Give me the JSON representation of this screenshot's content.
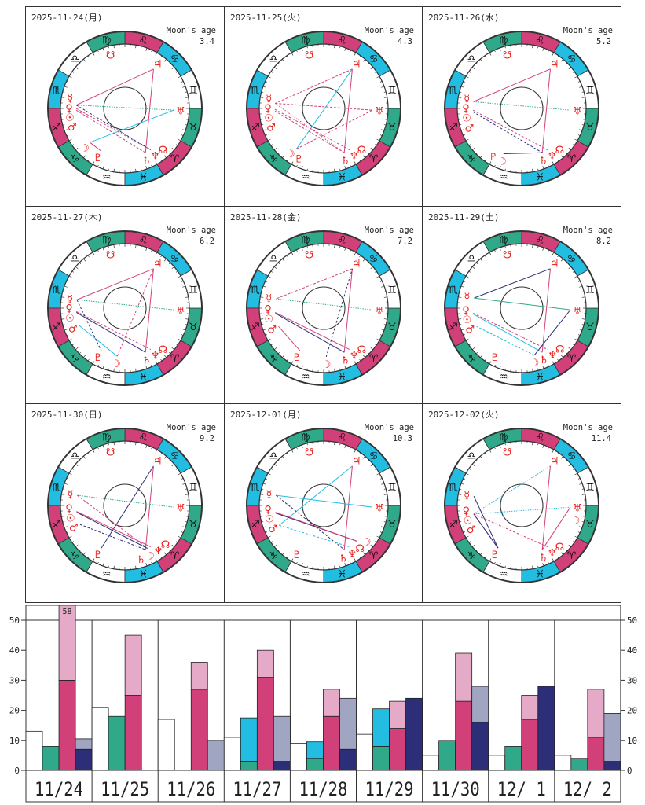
{
  "moon_age_label": "Moon's age",
  "colors": {
    "pink": "#d2407a",
    "lightpink": "#e6aac9",
    "green": "#2fa98a",
    "cyan": "#22bde0",
    "navy": "#2c2f77",
    "gray": "#a0a5c2",
    "white": "#ffffff",
    "glyph": "#e8201c"
  },
  "zodiac": [
    "♈",
    "♉",
    "♊",
    "♋",
    "♌",
    "♍",
    "♎",
    "♏",
    "♐",
    "♑",
    "♒",
    "♓"
  ],
  "planet_glyphs": {
    "Sun": "☉",
    "Moon": "☽",
    "Mercury": "☿",
    "Venus": "♀",
    "Mars": "♂",
    "Jupiter": "♃",
    "Saturn": "♄",
    "Uranus": "♅",
    "Neptune": "♆",
    "Pluto": "♇",
    "Node": "☊",
    "SNode": "☋"
  },
  "panels": [
    {
      "date": "2025-11-24(月)",
      "moon_age": "3.4",
      "planets": {
        "Sun": 242,
        "Moon": 284,
        "Mercury": 236,
        "Venus": 240,
        "Mars": 258,
        "Jupiter": 114,
        "Saturn": 355,
        "Uranus": 58,
        "Neptune": 2,
        "Pluto": 301,
        "Node": 12,
        "SNode": 165
      },
      "aspects": [
        [
          "Jupiter",
          "Mercury",
          "pink",
          "solid"
        ],
        [
          "Jupiter",
          "Saturn",
          "pink",
          "solid"
        ],
        [
          "Moon",
          "Uranus",
          "cyan",
          "solid"
        ],
        [
          "Mercury",
          "Uranus",
          "green",
          "dot"
        ],
        [
          "Sun",
          "Saturn",
          "pink",
          "dash"
        ],
        [
          "Venus",
          "Neptune",
          "pink",
          "dash"
        ],
        [
          "Mercury",
          "Neptune",
          "navy",
          "dash"
        ],
        [
          "Moon",
          "Pluto",
          "pink",
          "solid"
        ]
      ]
    },
    {
      "date": "2025-11-25(火)",
      "moon_age": "4.3",
      "planets": {
        "Sun": 243,
        "Moon": 296,
        "Mercury": 234,
        "Venus": 241,
        "Mars": 259,
        "Jupiter": 114,
        "Saturn": 355,
        "Uranus": 58,
        "Neptune": 2,
        "Pluto": 301,
        "Node": 12,
        "SNode": 165
      },
      "aspects": [
        [
          "Jupiter",
          "Mercury",
          "pink",
          "dash"
        ],
        [
          "Jupiter",
          "Saturn",
          "pink",
          "solid"
        ],
        [
          "Moon",
          "Jupiter",
          "cyan",
          "solid"
        ],
        [
          "Mercury",
          "Uranus",
          "pink",
          "dash"
        ],
        [
          "Sun",
          "Saturn",
          "pink",
          "dash"
        ],
        [
          "Venus",
          "Neptune",
          "pink",
          "dash"
        ],
        [
          "Moon",
          "Uranus",
          "pink",
          "dash"
        ],
        [
          "Mercury",
          "Saturn",
          "pink",
          "dot"
        ]
      ]
    },
    {
      "date": "2025-11-26(水)",
      "moon_age": "5.2",
      "planets": {
        "Sun": 244,
        "Moon": 308,
        "Mercury": 232,
        "Venus": 242,
        "Mars": 260,
        "Jupiter": 114,
        "Saturn": 355,
        "Uranus": 58,
        "Neptune": 2,
        "Pluto": 301,
        "Node": 12,
        "SNode": 165
      },
      "aspects": [
        [
          "Jupiter",
          "Mercury",
          "pink",
          "solid"
        ],
        [
          "Jupiter",
          "Saturn",
          "pink",
          "solid"
        ],
        [
          "Mercury",
          "Uranus",
          "green",
          "dot"
        ],
        [
          "Sun",
          "Saturn",
          "navy",
          "dash"
        ],
        [
          "Venus",
          "Neptune",
          "pink",
          "dash"
        ],
        [
          "Moon",
          "Saturn",
          "navy",
          "solid"
        ]
      ]
    },
    {
      "date": "2025-11-27(木)",
      "moon_age": "6.2",
      "planets": {
        "Sun": 245,
        "Moon": 321,
        "Mercury": 230,
        "Venus": 244,
        "Mars": 261,
        "Jupiter": 114,
        "Saturn": 355,
        "Uranus": 58,
        "Neptune": 2,
        "Pluto": 301,
        "Node": 12,
        "SNode": 165
      },
      "aspects": [
        [
          "Jupiter",
          "Mercury",
          "pink",
          "solid"
        ],
        [
          "Jupiter",
          "Saturn",
          "pink",
          "solid"
        ],
        [
          "Mercury",
          "Uranus",
          "green",
          "dot"
        ],
        [
          "Sun",
          "Saturn",
          "navy",
          "solid"
        ],
        [
          "Venus",
          "Neptune",
          "pink",
          "dash"
        ],
        [
          "Moon",
          "Jupiter",
          "pink",
          "dash"
        ],
        [
          "Moon",
          "Mars",
          "cyan",
          "solid"
        ],
        [
          "Mercury",
          "Pluto",
          "navy",
          "dash"
        ]
      ]
    },
    {
      "date": "2025-11-28(金)",
      "moon_age": "7.2",
      "planets": {
        "Sun": 246,
        "Moon": 333,
        "Mercury": 229,
        "Venus": 245,
        "Mars": 262,
        "Jupiter": 114,
        "Saturn": 355,
        "Uranus": 58,
        "Neptune": 2,
        "Pluto": 301,
        "Node": 12,
        "SNode": 165
      },
      "aspects": [
        [
          "Jupiter",
          "Mercury",
          "pink",
          "dash"
        ],
        [
          "Jupiter",
          "Saturn",
          "pink",
          "solid"
        ],
        [
          "Mercury",
          "Uranus",
          "green",
          "dot"
        ],
        [
          "Sun",
          "Saturn",
          "navy",
          "solid"
        ],
        [
          "Venus",
          "Neptune",
          "pink",
          "solid"
        ],
        [
          "Moon",
          "Jupiter",
          "navy",
          "dash"
        ],
        [
          "Mars",
          "Pluto",
          "pink",
          "solid"
        ]
      ]
    },
    {
      "date": "2025-11-29(土)",
      "moon_age": "8.2",
      "planets": {
        "Sun": 247,
        "Moon": 345,
        "Mercury": 228,
        "Venus": 246,
        "Mars": 262,
        "Jupiter": 114,
        "Saturn": 355,
        "Uranus": 58,
        "Neptune": 2,
        "Pluto": 301,
        "Node": 12,
        "SNode": 165
      },
      "aspects": [
        [
          "Jupiter",
          "Mercury",
          "navy",
          "solid"
        ],
        [
          "Jupiter",
          "Saturn",
          "pink",
          "solid"
        ],
        [
          "Mercury",
          "Uranus",
          "green",
          "solid"
        ],
        [
          "Sun",
          "Saturn",
          "cyan",
          "solid"
        ],
        [
          "Venus",
          "Neptune",
          "pink",
          "dash"
        ],
        [
          "Moon",
          "Mars",
          "cyan",
          "dash"
        ],
        [
          "Moon",
          "Uranus",
          "navy",
          "solid"
        ]
      ]
    },
    {
      "date": "2025-11-30(日)",
      "moon_age": "9.2",
      "planets": {
        "Sun": 248,
        "Moon": 358,
        "Mercury": 228,
        "Venus": 247,
        "Mars": 263,
        "Jupiter": 114,
        "Saturn": 355,
        "Uranus": 58,
        "Neptune": 2,
        "Pluto": 301,
        "Node": 12,
        "SNode": 165
      },
      "aspects": [
        [
          "Jupiter",
          "Pluto",
          "navy",
          "solid"
        ],
        [
          "Jupiter",
          "Saturn",
          "pink",
          "solid"
        ],
        [
          "Mercury",
          "Uranus",
          "green",
          "dot"
        ],
        [
          "Sun",
          "Moon",
          "navy",
          "solid"
        ],
        [
          "Venus",
          "Neptune",
          "pink",
          "solid"
        ],
        [
          "Mercury",
          "Moon",
          "pink",
          "dash"
        ],
        [
          "Mars",
          "Saturn",
          "navy",
          "dash"
        ]
      ]
    },
    {
      "date": "2025-12-01(月)",
      "moon_age": "10.3",
      "planets": {
        "Sun": 249,
        "Moon": 13,
        "Mercury": 228,
        "Venus": 248,
        "Mars": 264,
        "Jupiter": 114,
        "Saturn": 355,
        "Uranus": 58,
        "Neptune": 2,
        "Pluto": 301,
        "Node": 12,
        "SNode": 165
      },
      "aspects": [
        [
          "Jupiter",
          "Mars",
          "cyan",
          "solid"
        ],
        [
          "Jupiter",
          "Saturn",
          "pink",
          "solid"
        ],
        [
          "Mercury",
          "Uranus",
          "cyan",
          "solid"
        ],
        [
          "Sun",
          "Moon",
          "navy",
          "solid"
        ],
        [
          "Venus",
          "Moon",
          "pink",
          "solid"
        ],
        [
          "Mercury",
          "Saturn",
          "navy",
          "dash"
        ],
        [
          "Mars",
          "Neptune",
          "cyan",
          "dash"
        ]
      ]
    },
    {
      "date": "2025-12-02(火)",
      "moon_age": "11.4",
      "planets": {
        "Sun": 250,
        "Moon": 45,
        "Mercury": 229,
        "Venus": 250,
        "Mars": 265,
        "Jupiter": 114,
        "Saturn": 355,
        "Uranus": 58,
        "Neptune": 2,
        "Pluto": 301,
        "Node": 12,
        "SNode": 165
      },
      "aspects": [
        [
          "Jupiter",
          "Venus",
          "cyan",
          "dot"
        ],
        [
          "Jupiter",
          "Saturn",
          "pink",
          "solid"
        ],
        [
          "Venus",
          "Uranus",
          "cyan",
          "dot"
        ],
        [
          "Mercury",
          "Pluto",
          "navy",
          "solid"
        ],
        [
          "Venus",
          "Pluto",
          "pink",
          "solid"
        ],
        [
          "Sun",
          "Pluto",
          "navy",
          "solid"
        ],
        [
          "Venus",
          "Neptune",
          "pink",
          "dash"
        ],
        [
          "Uranus",
          "Saturn",
          "pink",
          "solid"
        ]
      ]
    }
  ],
  "chart_data": {
    "type": "bar",
    "categories": [
      "11/24",
      "11/25",
      "11/26",
      "11/27",
      "11/28",
      "11/29",
      "11/30",
      "12/ 1",
      "12/ 2"
    ],
    "ylim": [
      0,
      50
    ],
    "yticks": [
      0,
      10,
      20,
      30,
      40,
      50
    ],
    "columns": [
      {
        "stack": [
          {
            "color": "white",
            "values": [
              13,
              21,
              17,
              11,
              9,
              12,
              5,
              5,
              5
            ]
          }
        ]
      },
      {
        "stack": [
          {
            "color": "green",
            "values": [
              8,
              18,
              0,
              3,
              4,
              8,
              10,
              8,
              4
            ]
          },
          {
            "color": "cyan",
            "values": [
              0,
              0,
              0,
              14.5,
              5.5,
              12.5,
              0,
              0,
              0
            ]
          }
        ]
      },
      {
        "stack": [
          {
            "color": "pink",
            "values": [
              30,
              25,
              27,
              31,
              18,
              14,
              23,
              17,
              11
            ]
          },
          {
            "color": "lightpink",
            "values": [
              28,
              20,
              9,
              9,
              9,
              9,
              16,
              8,
              16
            ]
          }
        ]
      },
      {
        "stack": [
          {
            "color": "navy",
            "values": [
              7,
              0,
              0,
              3,
              7,
              24,
              16,
              28,
              3
            ]
          },
          {
            "color": "gray",
            "values": [
              3.5,
              0,
              10,
              15,
              17,
              0,
              12,
              0,
              16
            ]
          }
        ]
      }
    ],
    "data_labels": [
      {
        "category": "11/24",
        "column": 3,
        "text": "58"
      }
    ]
  }
}
